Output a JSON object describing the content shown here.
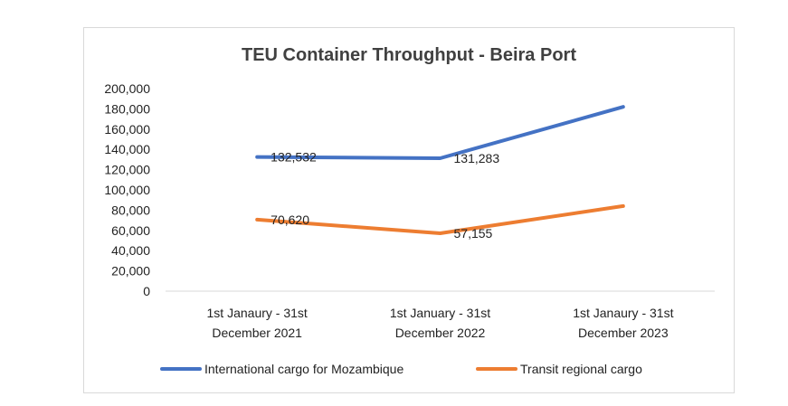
{
  "chart_data": {
    "type": "line",
    "title": "TEU Container Throughput - Beira Port",
    "categories": [
      [
        "1st Janaury - 31st",
        "December 2021"
      ],
      [
        "1st January - 31st",
        "December 2022"
      ],
      [
        "1st Janaury - 31st",
        "December 2023"
      ]
    ],
    "yticks": [
      "200,000",
      "180,000",
      "160,000",
      "140,000",
      "120,000",
      "100,000",
      "80,000",
      "60,000",
      "40,000",
      "20,000",
      "0"
    ],
    "ylim": [
      0,
      200000
    ],
    "grid": false,
    "legend_position": "bottom",
    "series": [
      {
        "name": "International cargo for Mozambique",
        "color": "#4472c4",
        "values": [
          132532,
          131283,
          182000
        ],
        "data_labels": [
          "132,532",
          "131,283",
          null
        ]
      },
      {
        "name": "Transit regional cargo",
        "color": "#ed7d31",
        "values": [
          70620,
          57155,
          84000
        ],
        "data_labels": [
          "70,620",
          "57,155",
          null
        ]
      }
    ]
  }
}
